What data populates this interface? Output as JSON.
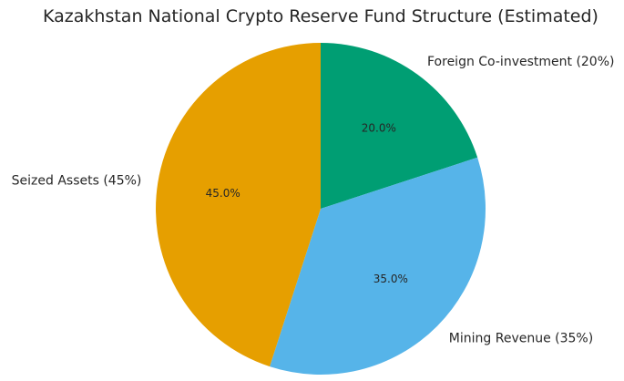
{
  "chart_data": {
    "type": "pie",
    "title": "Kazakhstan National Crypto Reserve Fund Structure (Estimated)",
    "slices": [
      {
        "label": "Foreign Co-investment (20%)",
        "value": 20,
        "pct_label": "20.0%",
        "color": "#009E73"
      },
      {
        "label": "Mining Revenue (35%)",
        "value": 35,
        "pct_label": "35.0%",
        "color": "#56B4E9"
      },
      {
        "label": "Seized Assets (45%)",
        "value": 45,
        "pct_label": "45.0%",
        "color": "#E69F00"
      }
    ],
    "start_angle": "top (12 o'clock)",
    "direction": "clockwise",
    "legend": "none"
  }
}
